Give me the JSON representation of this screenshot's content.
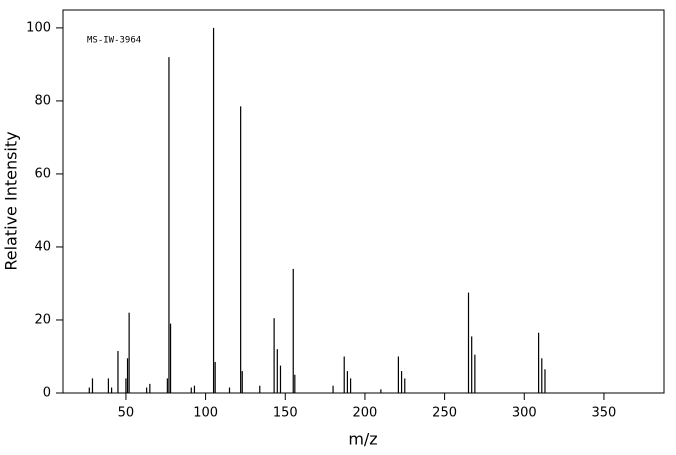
{
  "chart_data": {
    "type": "bar",
    "annotation": "MS-IW-3964",
    "x_label": "m/z",
    "y_label": "Relative Intensity",
    "color": "#000000",
    "xlim": [
      10.5,
      387.7
    ],
    "ylim": [
      0,
      104.9
    ],
    "xticks": [
      50,
      100,
      150,
      200,
      250,
      300,
      350
    ],
    "yticks": [
      0,
      20,
      40,
      60,
      80,
      100
    ],
    "x": [
      27,
      29,
      39,
      41,
      45,
      50,
      51,
      52,
      63,
      65,
      76,
      77,
      78,
      91,
      93,
      105,
      106,
      115,
      122,
      123,
      134,
      143,
      145,
      147,
      155,
      156,
      180,
      187,
      189,
      191,
      210,
      221,
      223,
      225,
      265,
      267,
      269,
      309,
      311,
      313
    ],
    "values": [
      1.5,
      4,
      4,
      1.5,
      11.5,
      4,
      9.5,
      22,
      1.5,
      2.5,
      4,
      92,
      19,
      1.5,
      2,
      100,
      8.5,
      1.5,
      78.5,
      6,
      2,
      20.5,
      12,
      7.5,
      34,
      5,
      2,
      10,
      6,
      4,
      1,
      10,
      6,
      4,
      27.5,
      15.5,
      10.5,
      16.5,
      9.5,
      6.5
    ]
  }
}
